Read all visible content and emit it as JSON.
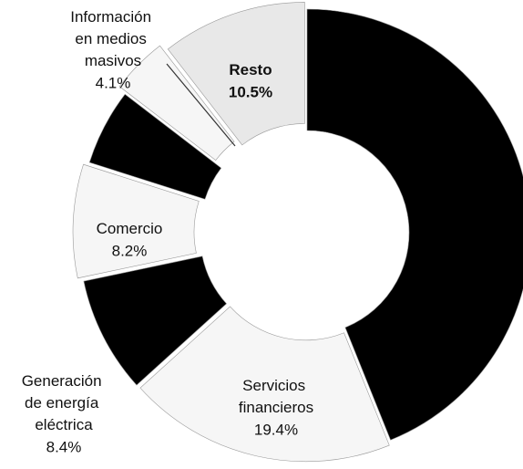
{
  "chart_data": {
    "type": "donut",
    "categories": [
      null,
      "Servicios financieros",
      "Generación de energía eléctrica",
      "Comercio",
      null,
      "Información en medios masivos",
      "Resto"
    ],
    "values": [
      43.9,
      19.4,
      8.4,
      8.2,
      5.5,
      4.1,
      10.5
    ],
    "value_labels": [
      null,
      "19.4%",
      "8.4%",
      "8.2%",
      null,
      "4.1%",
      "10.5%"
    ],
    "colors": [
      "#000000",
      "#f6f6f6",
      "#000000",
      "#f6f6f6",
      "#000000",
      "#f6f6f6",
      "#e8e8e8"
    ]
  }
}
